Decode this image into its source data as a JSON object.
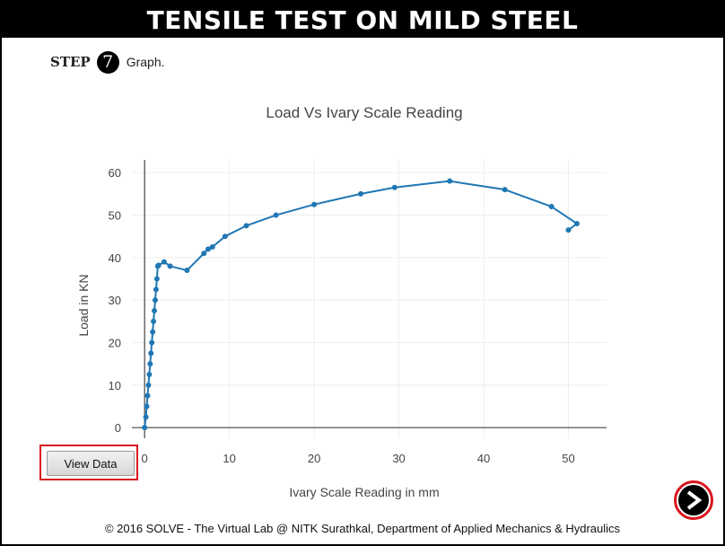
{
  "header": {
    "title": "TENSILE TEST ON MILD STEEL"
  },
  "step": {
    "label": "STEP",
    "number": "7",
    "text": "Graph."
  },
  "buttons": {
    "view_data": "View Data"
  },
  "footer": {
    "text": "© 2016 SOLVE - The Virtual Lab @ NITK Surathkal, Department of Applied Mechanics & Hydraulics"
  },
  "icons": {
    "next": "next-arrow-icon"
  },
  "colors": {
    "series": "#1f77b4",
    "highlight": "#d9161f",
    "header_bg": "#000000"
  },
  "chart_data": {
    "type": "line",
    "title": "Load Vs Ivary Scale Reading",
    "xlabel": "Ivary Scale Reading in mm",
    "ylabel": "Load in KN",
    "xlim": [
      -1.5,
      54.5
    ],
    "ylim": [
      -2.5,
      63
    ],
    "xticks": [
      0,
      10,
      20,
      30,
      40,
      50
    ],
    "yticks": [
      0,
      10,
      20,
      30,
      40,
      50,
      60
    ],
    "grid": true,
    "series": [
      {
        "x": [
          0,
          0.15,
          0.25,
          0.35,
          0.45,
          0.55,
          0.65,
          0.75,
          0.85,
          0.95,
          1.05,
          1.15,
          1.25,
          1.35,
          1.45,
          1.55,
          1.65,
          2.3,
          3.0,
          5.0,
          7.0,
          7.5,
          8.0,
          9.5,
          12.0,
          15.5,
          20.0,
          25.5,
          29.5,
          36.0,
          42.5,
          48.0,
          51.0,
          50.0
        ],
        "y": [
          0,
          2.5,
          5,
          7.5,
          10,
          12.5,
          15,
          17.5,
          20,
          22.5,
          25,
          27.5,
          30,
          32.5,
          35,
          38,
          38.2,
          39,
          38,
          37,
          41,
          42,
          42.5,
          45,
          47.5,
          50,
          52.5,
          55,
          56.5,
          58,
          56,
          52,
          48,
          46.5
        ]
      }
    ]
  }
}
